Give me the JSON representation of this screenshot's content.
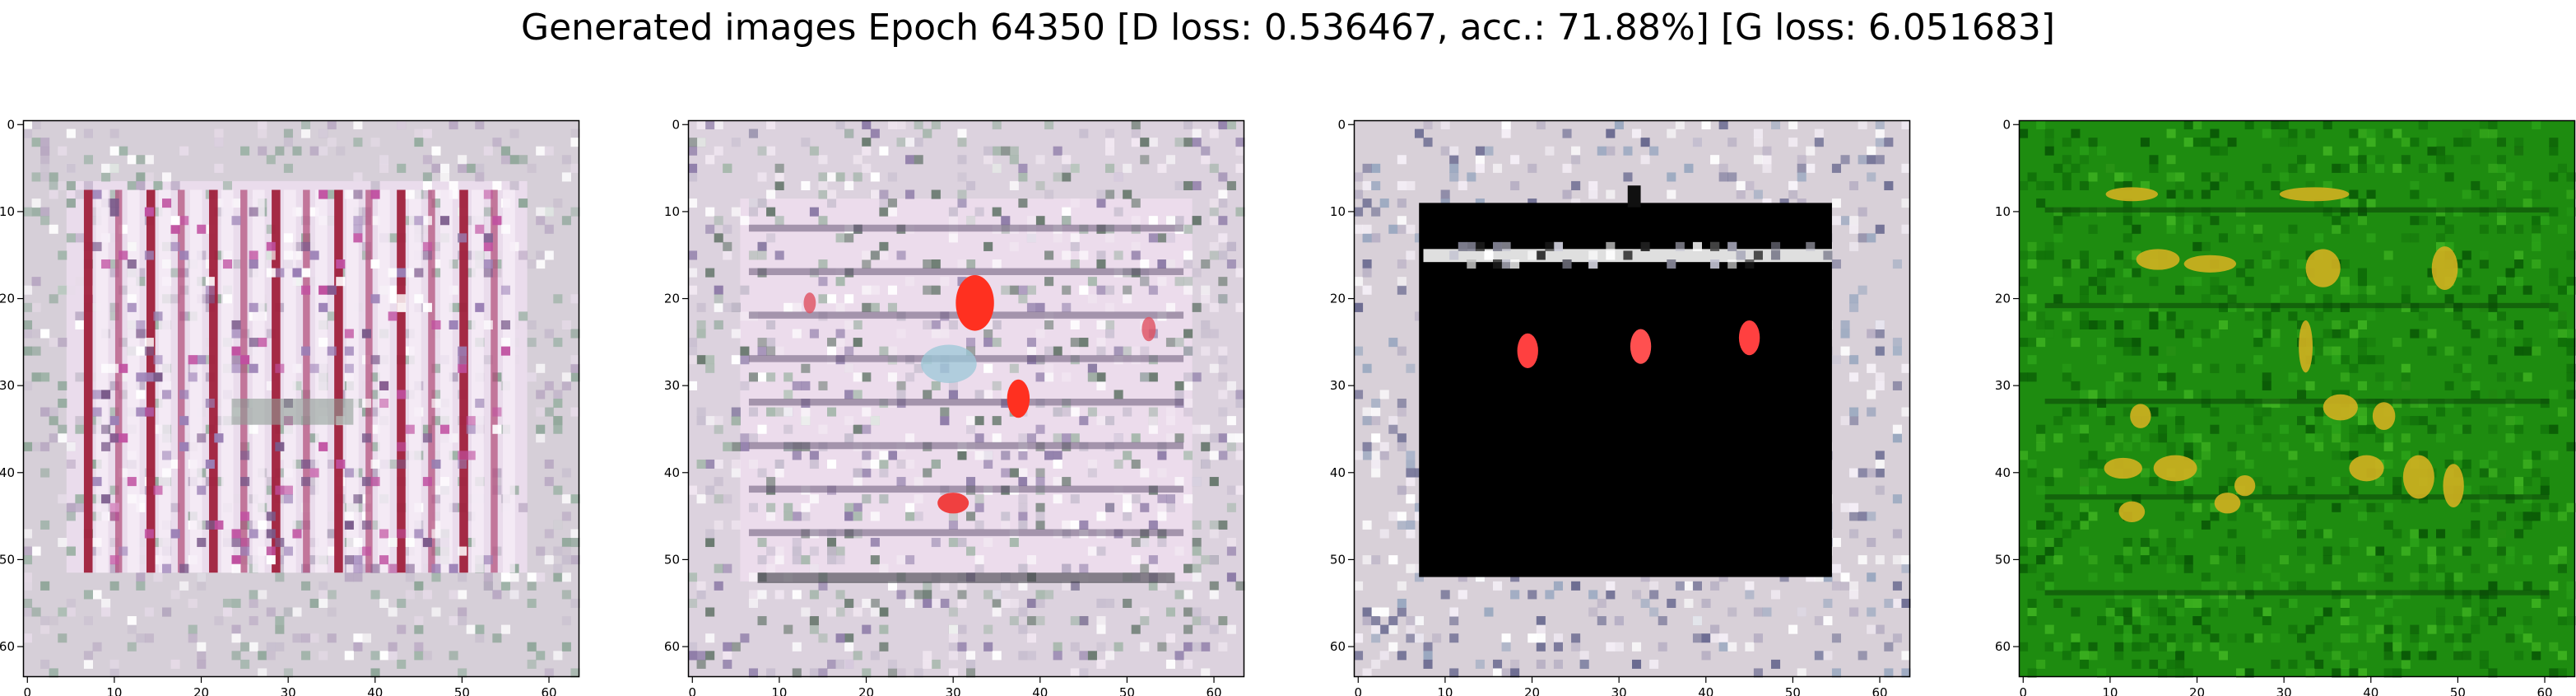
{
  "figure": {
    "title": "Generated images Epoch 64350 [D loss: 0.536467, acc.: 71.88%] [G loss: 6.051683]"
  },
  "colors": {
    "panel_1_base": "#d6cfd8",
    "panel_1_stripe": "#a0203c",
    "panel_2_base": "#dcd2de",
    "panel_2_blob": "#ff3020",
    "panel_3_frame": "#d8d0d8",
    "panel_3_dark": "#000000",
    "panel_3_spot": "#ff4040",
    "panel_4_base": "#1e8c10",
    "panel_4_mark": "#d2b020"
  },
  "panels": [
    {
      "id": "generated-image-1",
      "subject": "vertical-stripes",
      "xticks": [
        "0",
        "10",
        "20",
        "30",
        "40",
        "50",
        "60"
      ],
      "yticks": [
        "0",
        "10",
        "20",
        "30",
        "40",
        "50",
        "60"
      ]
    },
    {
      "id": "generated-image-2",
      "subject": "pink-noise-with-red-blobs",
      "xticks": [
        "0",
        "10",
        "20",
        "30",
        "40",
        "50",
        "60"
      ],
      "yticks": [
        "0",
        "10",
        "20",
        "30",
        "40",
        "50",
        "60"
      ]
    },
    {
      "id": "generated-image-3",
      "subject": "black-panel-with-red-spots",
      "xticks": [
        "0",
        "10",
        "20",
        "30",
        "40",
        "50",
        "60"
      ],
      "yticks": [
        "0",
        "10",
        "20",
        "30",
        "40",
        "50",
        "60"
      ]
    },
    {
      "id": "generated-image-4",
      "subject": "green-field-with-yellow-marks",
      "xticks": [
        "0",
        "10",
        "20",
        "30",
        "40",
        "50",
        "60"
      ],
      "yticks": [
        "0",
        "10",
        "20",
        "30",
        "40",
        "50",
        "60"
      ]
    }
  ]
}
